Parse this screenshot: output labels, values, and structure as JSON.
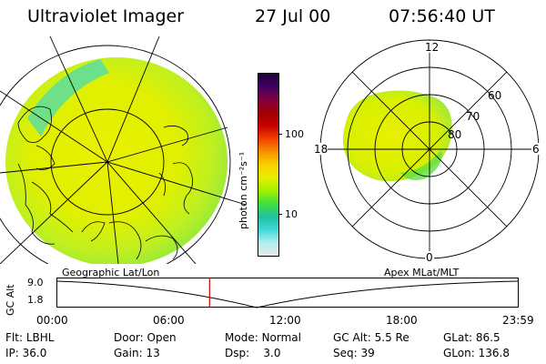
{
  "header": {
    "title": "Ultraviolet Imager",
    "date": "27 Jul 00",
    "time": "07:56:40 UT"
  },
  "colorbar": {
    "label": "photon cm⁻²s⁻¹",
    "tick_100": "100",
    "tick_10": "10",
    "colors": [
      "#e8e8e8",
      "#b0f0f0",
      "#40d8d8",
      "#20c0a0",
      "#40e040",
      "#a0f000",
      "#e8f000",
      "#f8d000",
      "#f89000",
      "#f04000",
      "#c80000",
      "#a00000",
      "#800040",
      "#400060",
      "#200040"
    ]
  },
  "geo_panel": {
    "label": "Geographic Lat/Lon"
  },
  "polar_panel": {
    "label": "Apex MLat/MLT",
    "mlt_12": "12",
    "mlt_18": "18",
    "mlt_6": "6",
    "mlt_0": "0",
    "lat_60": "60",
    "lat_70": "70",
    "lat_80": "80"
  },
  "timeline": {
    "ylabel": "GC Alt",
    "y_top": "9.0",
    "y_bottom": "1.8",
    "ticks": [
      "00:00",
      "06:00",
      "12:00",
      "18:00",
      "23:59"
    ],
    "current_time_hours": 7.944
  },
  "footer": {
    "flt_label": "Flt:",
    "flt_value": "LBHL",
    "door_label": "Door:",
    "door_value": "Open",
    "mode_label": "Mode:",
    "mode_value": "Normal",
    "gcalt_label": "GC Alt:",
    "gcalt_value": "5.5 Re",
    "glat_label": "GLat:",
    "glat_value": "86.5",
    "ip_label": "IP:",
    "ip_value": "36.0",
    "gain_label": "Gain:",
    "gain_value": "13",
    "dsp_label": "Dsp:",
    "dsp_value": "3.0",
    "seq_label": "Seq:",
    "seq_value": "39",
    "glon_label": "GLon:",
    "glon_value": "136.8"
  }
}
